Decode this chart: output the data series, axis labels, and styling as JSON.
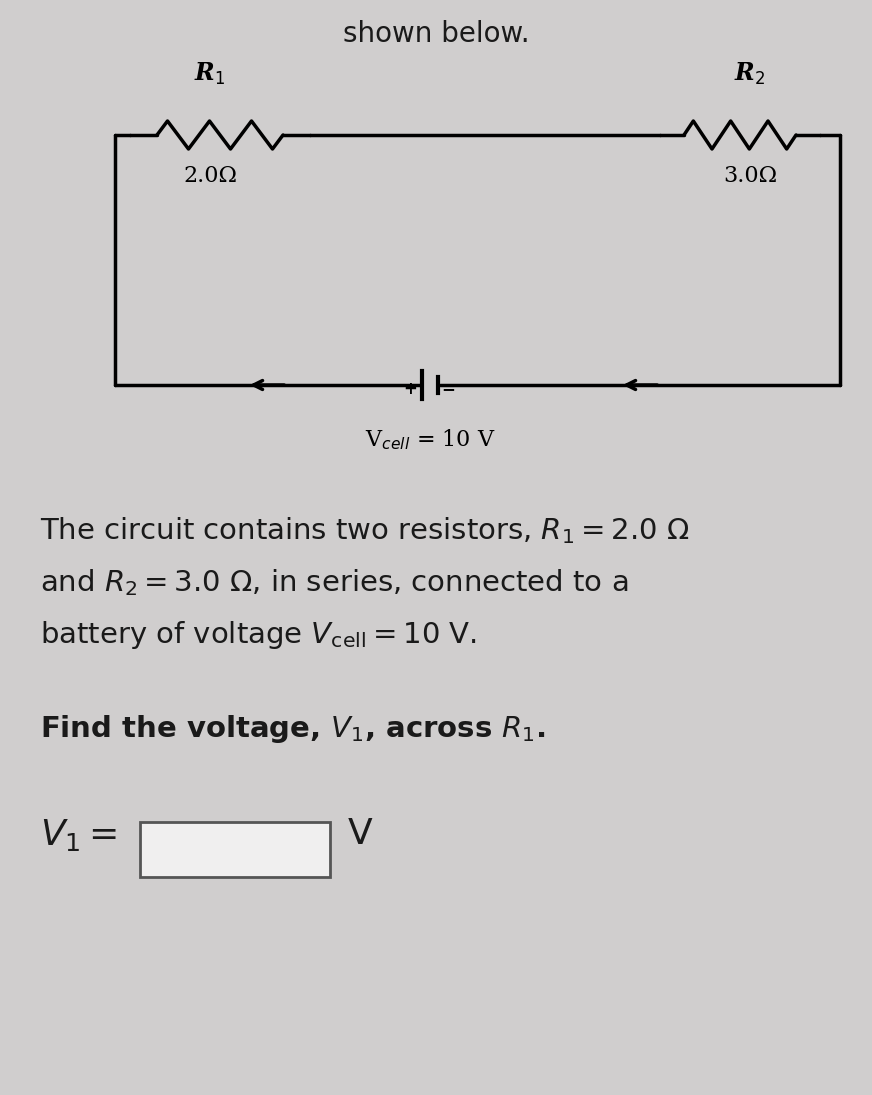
{
  "bg_color": "#d0cece",
  "circuit_bg": "#e8e6e6",
  "line_color": "#000000",
  "line_width": 2.5,
  "title_partial": "shown below.",
  "r1_label": "R$_1$",
  "r1_value": "2.0Ω",
  "r2_label": "R$_2$",
  "r2_value": "3.0Ω",
  "battery_label": "V$_{cell}$ = 10 V",
  "problem_text_line1": "The circuit contains two resistors, $R_1 = 2.0$ Ω",
  "problem_text_line2": "and $R_2 = 3.0$ Ω, in series, connected to a",
  "problem_text_line3": "battery of voltage $V_{\\mathrm{cell}} = 10$ V.",
  "find_text": "Find the voltage, $V_1$, across $R_1$.",
  "answer_label": "$V_1 =$",
  "answer_unit": "V",
  "font_color": "#1a1a1a"
}
